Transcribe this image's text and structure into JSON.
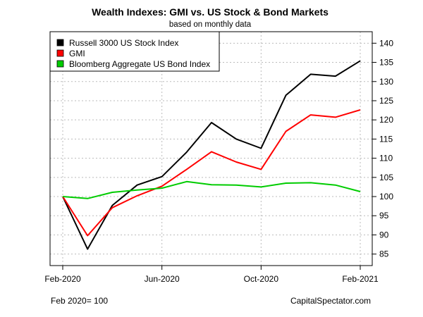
{
  "chart_data": {
    "type": "line",
    "title": "Wealth Indexes: GMI vs. US Stock & Bond Markets",
    "subtitle": "based on monthly data",
    "x": [
      "2020-02",
      "2020-03",
      "2020-04",
      "2020-05",
      "2020-06",
      "2020-07",
      "2020-08",
      "2020-09",
      "2020-10",
      "2020-11",
      "2020-12",
      "2021-01",
      "2021-02"
    ],
    "x_tick_labels": [
      "Feb-2020",
      "Jun-2020",
      "Oct-2020",
      "Feb-2021"
    ],
    "x_tick_positions": [
      "2020-02",
      "2020-06",
      "2020-10",
      "2021-02"
    ],
    "ylim": [
      82,
      143
    ],
    "y_ticks": [
      85,
      90,
      95,
      100,
      105,
      110,
      115,
      120,
      125,
      130,
      135,
      140
    ],
    "y_axis_side": "right",
    "grid": true,
    "legend_position": "top-left",
    "series": [
      {
        "name": "Russell 3000 US Stock Index",
        "color": "#000000",
        "values": [
          100,
          86.3,
          97.7,
          103.0,
          105.2,
          111.6,
          119.3,
          115.0,
          112.6,
          126.4,
          131.9,
          131.4,
          135.4
        ]
      },
      {
        "name": "GMI",
        "color": "#ff0000",
        "values": [
          100,
          89.8,
          97.1,
          100.2,
          102.7,
          107.1,
          111.7,
          109.0,
          107.1,
          117.0,
          121.3,
          120.7,
          122.6
        ]
      },
      {
        "name": "Bloomberg Aggregate US Bond Index",
        "color": "#00cc00",
        "values": [
          100,
          99.5,
          101.1,
          101.7,
          102.2,
          103.9,
          103.1,
          103.0,
          102.5,
          103.5,
          103.6,
          103.0,
          101.3
        ]
      }
    ]
  },
  "footer": {
    "left": "Feb 2020= 100",
    "right": "CapitalSpectator.com"
  }
}
